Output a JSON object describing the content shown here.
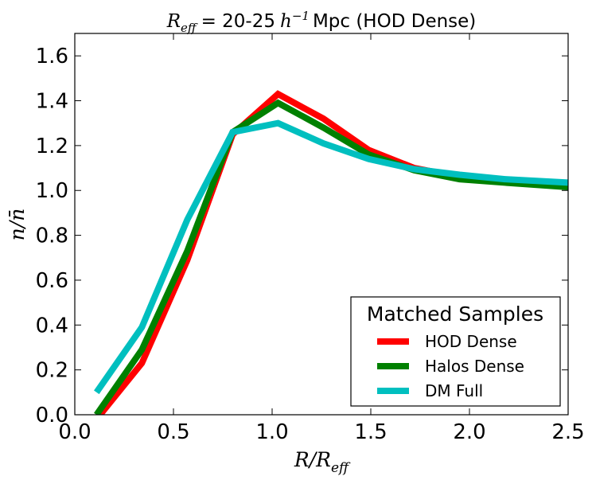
{
  "chart_data": {
    "type": "line",
    "title": {
      "symbol": "R",
      "symbol_sub": "eff",
      "middle": "= 20-25",
      "h_symbol": "h",
      "h_exp": "−1",
      "suffix": "Mpc (HOD Dense)"
    },
    "xlabel": {
      "main": "R/R",
      "sub": "eff"
    },
    "ylabel": "n/n̄",
    "xlim": [
      0.0,
      2.5
    ],
    "ylim": [
      0.0,
      1.7
    ],
    "x_ticks": [
      "0.0",
      "0.5",
      "1.0",
      "1.5",
      "2.0",
      "2.5"
    ],
    "y_ticks": [
      "0.0",
      "0.2",
      "0.4",
      "0.6",
      "0.8",
      "1.0",
      "1.2",
      "1.4",
      "1.6"
    ],
    "legend": {
      "title": "Matched Samples",
      "location": "lower-right"
    },
    "series": [
      {
        "name": "HOD Dense",
        "color": "#ff0000",
        "x": [
          0.11,
          0.34,
          0.57,
          0.8,
          1.03,
          1.26,
          1.49,
          1.72,
          1.95,
          2.18,
          2.5
        ],
        "y": [
          -0.02,
          0.23,
          0.69,
          1.25,
          1.43,
          1.32,
          1.18,
          1.1,
          1.06,
          1.04,
          1.03
        ]
      },
      {
        "name": "Halos Dense",
        "color": "#008000",
        "x": [
          0.11,
          0.34,
          0.57,
          0.8,
          1.03,
          1.26,
          1.49,
          1.72,
          1.95,
          2.18,
          2.5
        ],
        "y": [
          0.0,
          0.29,
          0.73,
          1.26,
          1.39,
          1.28,
          1.16,
          1.09,
          1.05,
          1.035,
          1.015
        ]
      },
      {
        "name": "DM Full",
        "color": "#00bfbf",
        "x": [
          0.11,
          0.34,
          0.57,
          0.8,
          1.03,
          1.26,
          1.49,
          1.72,
          1.95,
          2.18,
          2.5
        ],
        "y": [
          0.1,
          0.39,
          0.87,
          1.26,
          1.3,
          1.21,
          1.14,
          1.095,
          1.07,
          1.05,
          1.035
        ]
      }
    ]
  }
}
